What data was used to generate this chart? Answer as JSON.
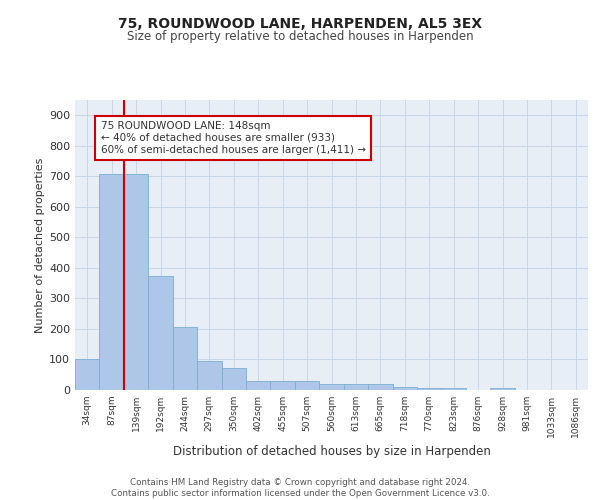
{
  "title": "75, ROUNDWOOD LANE, HARPENDEN, AL5 3EX",
  "subtitle": "Size of property relative to detached houses in Harpenden",
  "xlabel": "Distribution of detached houses by size in Harpenden",
  "ylabel": "Number of detached properties",
  "bar_labels": [
    "34sqm",
    "87sqm",
    "139sqm",
    "192sqm",
    "244sqm",
    "297sqm",
    "350sqm",
    "402sqm",
    "455sqm",
    "507sqm",
    "560sqm",
    "613sqm",
    "665sqm",
    "718sqm",
    "770sqm",
    "823sqm",
    "876sqm",
    "928sqm",
    "981sqm",
    "1033sqm",
    "1086sqm"
  ],
  "bar_values": [
    100,
    707,
    707,
    375,
    205,
    95,
    73,
    30,
    31,
    30,
    20,
    20,
    20,
    10,
    8,
    8,
    0,
    8,
    0,
    0,
    0
  ],
  "bar_color": "#aec6e8",
  "bar_edge_color": "#7aafd4",
  "grid_color": "#c8d8ea",
  "background_color": "#e8eef6",
  "vline_color": "#cc0000",
  "annotation_text": "75 ROUNDWOOD LANE: 148sqm\n← 40% of detached houses are smaller (933)\n60% of semi-detached houses are larger (1,411) →",
  "annotation_box_edgecolor": "#cc0000",
  "annotation_box_facecolor": "white",
  "footer_text": "Contains HM Land Registry data © Crown copyright and database right 2024.\nContains public sector information licensed under the Open Government Licence v3.0.",
  "ylim": [
    0,
    950
  ],
  "yticks": [
    0,
    100,
    200,
    300,
    400,
    500,
    600,
    700,
    800,
    900
  ],
  "title_fontsize": 10,
  "subtitle_fontsize": 8.5
}
